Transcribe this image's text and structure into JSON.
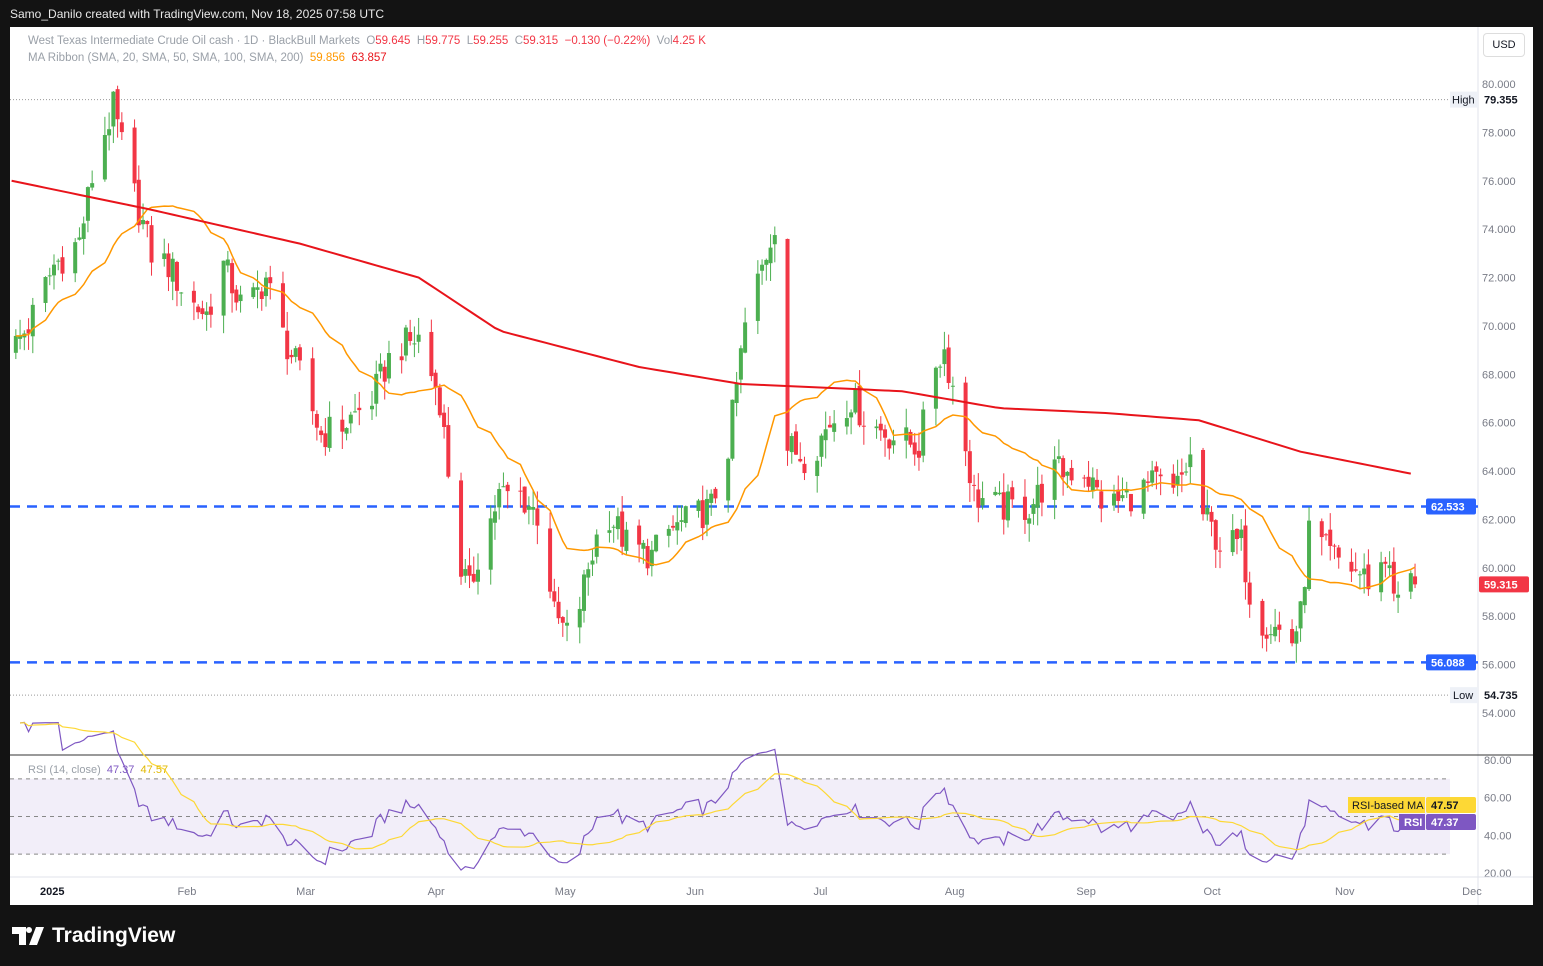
{
  "header": {
    "credit": "Samo_Danilo created with TradingView.com, Nov 18, 2025 07:58 UTC"
  },
  "legend": {
    "symbol": "West Texas Intermediate Crude Oil cash · 1D · BlackBull Markets",
    "o_label": "O",
    "o": "59.645",
    "h_label": "H",
    "h": "59.775",
    "l_label": "L",
    "l": "59.255",
    "c_label": "C",
    "c": "59.315",
    "change": "−0.130 (−0.22%)",
    "vol_label": "Vol",
    "vol": "4.25 K",
    "ma_name": "MA Ribbon (SMA, 20, SMA, 50, SMA, 100, SMA, 200)",
    "ma20": "59.856",
    "ma200": "63.857"
  },
  "currency": "USD",
  "rsi_legend": {
    "name": "RSI (14, close)",
    "rsi": "47.37",
    "ma": "47.57"
  },
  "rsi_tags": {
    "ma_label": "RSI-based MA",
    "ma_value": "47.57",
    "rsi_label": "RSI",
    "rsi_value": "47.37"
  },
  "price_tags": {
    "high_label": "High",
    "high": "79.355",
    "low_label": "Low",
    "low": "54.735",
    "res": "62.533",
    "sup": "56.088",
    "last": "59.315"
  },
  "brand": "TradingView",
  "colors": {
    "up": "#4caf50",
    "down": "#f23645",
    "sma20": "#ff9800",
    "sma200": "#e8141b",
    "level": "#2962ff",
    "rsi": "#7e57c2",
    "rsima": "#fdd835"
  },
  "chart_data": {
    "type": "candlestick",
    "title": "West Texas Intermediate Crude Oil cash · 1D",
    "x_unit": "days since 2025-01-01",
    "close_keypoints": [
      [
        -10,
        69
      ],
      [
        -6,
        70
      ],
      [
        0,
        72.5
      ],
      [
        6,
        73.5
      ],
      [
        10,
        77
      ],
      [
        14,
        79
      ],
      [
        18,
        76
      ],
      [
        23,
        73
      ],
      [
        27,
        72.5
      ],
      [
        32,
        71
      ],
      [
        36,
        70.5
      ],
      [
        40,
        72.5
      ],
      [
        45,
        70.5
      ],
      [
        50,
        72
      ],
      [
        53,
        70
      ],
      [
        58,
        68
      ],
      [
        63,
        65.5
      ],
      [
        69,
        66
      ],
      [
        75,
        67
      ],
      [
        80,
        69
      ],
      [
        86,
        69.5
      ],
      [
        91,
        67
      ],
      [
        93,
        64
      ],
      [
        96,
        60
      ],
      [
        98,
        59
      ],
      [
        100,
        60.5
      ],
      [
        105,
        63
      ],
      [
        110,
        63
      ],
      [
        115,
        62
      ],
      [
        118,
        58
      ],
      [
        122,
        57
      ],
      [
        126,
        60
      ],
      [
        130,
        62.5
      ],
      [
        135,
        61
      ],
      [
        141,
        60.5
      ],
      [
        145,
        61.5
      ],
      [
        150,
        62
      ],
      [
        155,
        62.5
      ],
      [
        159,
        65
      ],
      [
        163,
        70
      ],
      [
        168,
        73
      ],
      [
        171,
        75
      ],
      [
        173,
        65
      ],
      [
        178,
        64.5
      ],
      [
        183,
        66
      ],
      [
        188,
        67
      ],
      [
        192,
        66
      ],
      [
        197,
        65.5
      ],
      [
        204,
        65
      ],
      [
        208,
        68.5
      ],
      [
        210,
        69
      ],
      [
        214,
        66
      ],
      [
        217,
        63
      ],
      [
        223,
        62.5
      ],
      [
        230,
        62.5
      ],
      [
        236,
        64
      ],
      [
        243,
        64
      ],
      [
        248,
        62.5
      ],
      [
        254,
        63
      ],
      [
        260,
        63.5
      ],
      [
        264,
        63
      ],
      [
        268,
        64.5
      ],
      [
        270,
        62.5
      ],
      [
        275,
        61
      ],
      [
        280,
        61
      ],
      [
        283,
        58
      ],
      [
        288,
        57.5
      ],
      [
        292,
        57
      ],
      [
        294,
        58
      ],
      [
        296,
        61.5
      ],
      [
        301,
        60.5
      ],
      [
        306,
        60
      ],
      [
        310,
        59.5
      ],
      [
        315,
        60.5
      ],
      [
        316,
        58.5
      ],
      [
        319,
        59.5
      ],
      [
        321,
        59.315
      ]
    ],
    "sma200_keypoints": [
      [
        -10,
        76
      ],
      [
        23,
        74.8
      ],
      [
        58,
        73.4
      ],
      [
        86,
        72
      ],
      [
        105,
        69.8
      ],
      [
        138,
        68.3
      ],
      [
        162,
        67.6
      ],
      [
        200,
        67.3
      ],
      [
        223,
        66.6
      ],
      [
        248,
        66.4
      ],
      [
        270,
        66.1
      ],
      [
        294,
        64.8
      ],
      [
        321,
        63.857
      ]
    ],
    "levels": [
      62.533,
      56.088
    ],
    "high": 79.355,
    "low": 54.735,
    "ylim": [
      53.2,
      81.5
    ],
    "y_ticks": [
      "80.000",
      "78.000",
      "76.000",
      "74.000",
      "72.000",
      "70.000",
      "68.000",
      "66.000",
      "64.000",
      "62.000",
      "60.000",
      "58.000",
      "56.000",
      "54.000"
    ],
    "x_ticks": [
      {
        "label": "2025",
        "day": 0
      },
      {
        "label": "Feb",
        "day": 31
      },
      {
        "label": "Mar",
        "day": 59
      },
      {
        "label": "Apr",
        "day": 90
      },
      {
        "label": "May",
        "day": 120
      },
      {
        "label": "Jun",
        "day": 151
      },
      {
        "label": "Jul",
        "day": 181
      },
      {
        "label": "Aug",
        "day": 212
      },
      {
        "label": "Sep",
        "day": 243
      },
      {
        "label": "Oct",
        "day": 273
      },
      {
        "label": "Nov",
        "day": 304
      },
      {
        "label": "Dec",
        "day": 334
      }
    ],
    "rsi_ticks": [
      "80.00",
      "60.00",
      "40.00",
      "20.00"
    ],
    "rsi_band": [
      30,
      70
    ]
  }
}
